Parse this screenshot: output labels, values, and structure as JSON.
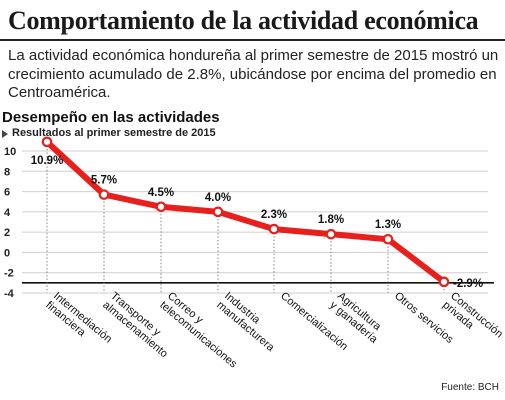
{
  "title": "Comportamiento de la actividad económica",
  "intro": "La actividad económica hondureña al primer semestre de 2015 mostró un crecimiento acumulado de 2.8%, ubicándose por encima del promedio en Centroamérica.",
  "source": "Fuente: BCH",
  "chart_data": {
    "type": "line",
    "title": "Desempeño en las actividades",
    "subtitle": "Resultados al primer semestre de 2015",
    "categories": [
      "Intermediación financiera",
      "Transporte y almacenamiento",
      "Correo y telecomunicaciones",
      "Industria manufacturera",
      "Comercialización",
      "Agricultura y ganadería",
      "Otros servicios",
      "Construcción privada"
    ],
    "category_lines": [
      [
        "Intermediación",
        "financiera"
      ],
      [
        "Transporte y",
        "almacenamiento"
      ],
      [
        "Correo y",
        "telecomunicaciones"
      ],
      [
        "Industria",
        "manufacturera"
      ],
      [
        "Comercialización"
      ],
      [
        "Agricultura",
        "y ganadería"
      ],
      [
        "Otros servicios"
      ],
      [
        "Construcción",
        "privada"
      ]
    ],
    "values": [
      10.9,
      5.7,
      4.5,
      4.0,
      2.3,
      1.8,
      1.3,
      -2.9
    ],
    "value_labels": [
      "10.9%",
      "5.7%",
      "4.5%",
      "4.0%",
      "2.3%",
      "1.8%",
      "1.3%",
      "-2.9%"
    ],
    "y_ticks": [
      "10",
      "8",
      "6",
      "4",
      "2",
      "0",
      "-2",
      "-4"
    ],
    "xlabel": "",
    "ylabel": "",
    "grid": "horizontal",
    "line_color": "#e8201d",
    "baseline_value": -3
  }
}
